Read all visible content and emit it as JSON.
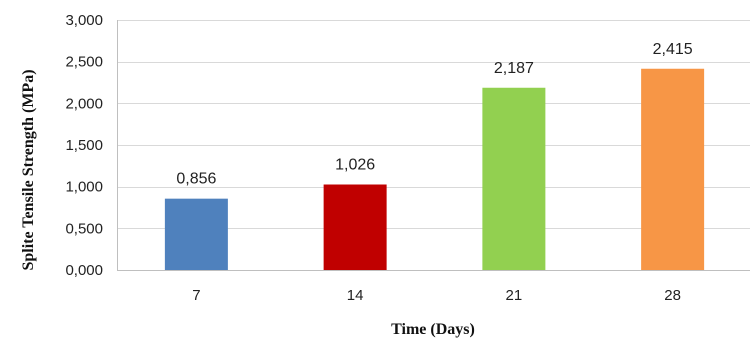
{
  "chart_data": {
    "type": "bar",
    "categories": [
      "7",
      "14",
      "21",
      "28"
    ],
    "values": [
      0.856,
      1.026,
      2.187,
      2.415
    ],
    "value_labels": [
      "0,856",
      "1,026",
      "2,187",
      "2,415"
    ],
    "colors": [
      "#4f81bd",
      "#c00000",
      "#92d050",
      "#f79646"
    ],
    "xlabel": "Time (Days)",
    "ylabel": "Splite Tensile Strength (MPa)",
    "ylim": [
      0,
      3
    ],
    "yticks": [
      0,
      0.5,
      1,
      1.5,
      2,
      2.5,
      3
    ],
    "ytick_labels": [
      "0,000",
      "0,500",
      "1,000",
      "1,500",
      "2,000",
      "2,500",
      "3,000"
    ],
    "grid": true,
    "legend": "none"
  }
}
